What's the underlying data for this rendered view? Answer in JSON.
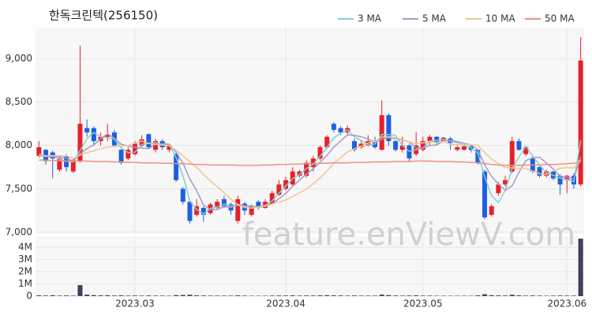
{
  "chart_data": {
    "type": "candlestick",
    "title": "한독크린텍(256150)",
    "watermark": "feature.enViewV.com",
    "up_color": "#e8202a",
    "down_color": "#1f5fe0",
    "grid": true,
    "legend": "top-right",
    "categories": [
      null,
      null,
      null,
      null,
      null,
      null,
      null,
      null,
      null,
      null,
      null,
      null,
      null,
      null,
      "2023.03",
      null,
      null,
      null,
      null,
      null,
      null,
      null,
      null,
      null,
      null,
      null,
      null,
      null,
      null,
      null,
      null,
      null,
      null,
      null,
      null,
      null,
      "2023.04",
      null,
      null,
      null,
      null,
      null,
      null,
      null,
      null,
      null,
      null,
      null,
      null,
      null,
      null,
      null,
      null,
      null,
      null,
      null,
      "2023.05",
      null,
      null,
      null,
      null,
      null,
      null,
      null,
      null,
      null,
      null,
      null,
      null,
      null,
      null,
      null,
      null,
      null,
      null,
      null,
      null,
      "2023.06",
      null,
      null
    ],
    "open": [
      7880,
      7950,
      7920,
      7720,
      7870,
      7700,
      7820,
      8200,
      8200,
      8050,
      8100,
      8150,
      7950,
      7850,
      7900,
      8000,
      8130,
      7950,
      8050,
      7950,
      7900,
      7500,
      7350,
      7200,
      7280,
      7220,
      7280,
      7380,
      7320,
      7130,
      7330,
      7200,
      7350,
      7280,
      7330,
      7430,
      7500,
      7550,
      7650,
      7650,
      7750,
      7850,
      7980,
      8250,
      8200,
      8150,
      8050,
      7980,
      8000,
      8050,
      7950,
      8350,
      8050,
      7950,
      8000,
      7900,
      7950,
      8050,
      8100,
      8050,
      8080,
      7950,
      7950,
      7990,
      7950,
      7700,
      7200,
      7450,
      7550,
      7700,
      8050,
      7900,
      7850,
      7750,
      7650,
      7700,
      7650,
      7600,
      7650,
      7550
    ],
    "high": [
      8050,
      7960,
      7940,
      7880,
      7900,
      7850,
      9150,
      8300,
      8220,
      8150,
      8250,
      8180,
      7960,
      7980,
      8050,
      8120,
      8140,
      8080,
      8070,
      8020,
      7920,
      7520,
      7380,
      7380,
      7300,
      7340,
      7380,
      7420,
      7340,
      7420,
      7350,
      7320,
      7370,
      7380,
      7480,
      7600,
      7640,
      7750,
      7720,
      7830,
      7880,
      8000,
      8120,
      8270,
      8220,
      8230,
      8080,
      8060,
      8120,
      8100,
      8520,
      8370,
      8060,
      8100,
      8020,
      8150,
      8100,
      8120,
      8110,
      8100,
      8100,
      8000,
      8010,
      8000,
      7960,
      7720,
      7320,
      7580,
      7650,
      8100,
      8080,
      8000,
      7870,
      7760,
      7720,
      7720,
      7670,
      7660,
      7680,
      9250
    ],
    "low": [
      7860,
      7780,
      7620,
      7700,
      7700,
      7680,
      7800,
      8100,
      8000,
      8000,
      8050,
      7980,
      7780,
      7830,
      7880,
      7980,
      7960,
      7920,
      7950,
      7920,
      7580,
      7320,
      7100,
      7180,
      7120,
      7200,
      7260,
      7280,
      7200,
      7100,
      7200,
      7180,
      7260,
      7270,
      7320,
      7420,
      7480,
      7530,
      7630,
      7630,
      7700,
      7830,
      7960,
      8150,
      8120,
      8130,
      7930,
      7960,
      7990,
      7960,
      7940,
      8000,
      7930,
      7920,
      7820,
      7880,
      7930,
      8000,
      8000,
      8040,
      7950,
      7930,
      7940,
      7920,
      7780,
      7150,
      7180,
      7420,
      7530,
      7680,
      7940,
      7880,
      7680,
      7630,
      7630,
      7600,
      7430,
      7450,
      7500,
      7530
    ],
    "close": [
      7980,
      7820,
      7850,
      7850,
      7750,
      7830,
      8250,
      8150,
      8050,
      8100,
      8120,
      8000,
      7800,
      7950,
      8020,
      8070,
      7980,
      8050,
      7980,
      8000,
      7600,
      7350,
      7130,
      7300,
      7200,
      7320,
      7350,
      7300,
      7250,
      7380,
      7250,
      7300,
      7280,
      7350,
      7450,
      7550,
      7600,
      7700,
      7700,
      7800,
      7850,
      7980,
      8100,
      8180,
      8150,
      8200,
      7950,
      8020,
      8050,
      7980,
      8350,
      8050,
      7950,
      8000,
      7850,
      8000,
      8050,
      8100,
      8030,
      8090,
      8030,
      7980,
      7990,
      7950,
      7800,
      7170,
      7300,
      7550,
      7600,
      8050,
      7950,
      7980,
      7700,
      7650,
      7700,
      7620,
      7550,
      7650,
      7550,
      8980
    ],
    "series": [
      {
        "name": "3 MA",
        "color": "#7fd0d4",
        "values": [
          7900,
          7880,
          7883,
          7840,
          7817,
          7810,
          7943,
          8077,
          8150,
          8100,
          8090,
          8073,
          7973,
          7917,
          7923,
          8013,
          8023,
          8033,
          8003,
          8010,
          7860,
          7650,
          7360,
          7260,
          7210,
          7273,
          7290,
          7323,
          7300,
          7310,
          7293,
          7310,
          7277,
          7310,
          7360,
          7450,
          7533,
          7617,
          7667,
          7733,
          7783,
          7877,
          7977,
          8087,
          8143,
          8177,
          8100,
          8057,
          8007,
          8017,
          8127,
          8127,
          8117,
          8000,
          7933,
          7950,
          7967,
          8050,
          8060,
          8073,
          8050,
          8033,
          8000,
          7973,
          7913,
          7640,
          7423,
          7340,
          7483,
          7733,
          7867,
          7993,
          7877,
          7777,
          7683,
          7657,
          7623,
          7607,
          7583,
          8060
        ]
      },
      {
        "name": "5 MA",
        "color": "#a996c8",
        "values": [
          7880,
          7870,
          7870,
          7870,
          7850,
          7820,
          7906,
          7966,
          8006,
          8076,
          8134,
          8084,
          8014,
          7994,
          7978,
          7968,
          7964,
          8014,
          8020,
          8016,
          7922,
          7796,
          7612,
          7476,
          7316,
          7260,
          7260,
          7294,
          7284,
          7320,
          7306,
          7296,
          7292,
          7312,
          7326,
          7386,
          7446,
          7530,
          7600,
          7670,
          7730,
          7806,
          7886,
          7982,
          8052,
          8122,
          8116,
          8100,
          8074,
          8040,
          8070,
          8090,
          8076,
          8066,
          8040,
          7970,
          7970,
          8000,
          8006,
          8054,
          8060,
          8046,
          8024,
          8008,
          7950,
          7778,
          7642,
          7554,
          7484,
          7534,
          7690,
          7826,
          7856,
          7866,
          7796,
          7730,
          7644,
          7634,
          7614,
          7870
        ]
      },
      {
        "name": "10 MA",
        "color": "#f2c58a",
        "values": [
          7880,
          7880,
          7880,
          7880,
          7880,
          7850,
          7888,
          7918,
          7938,
          7963,
          7977,
          7995,
          7990,
          8000,
          8027,
          8051,
          8024,
          8014,
          8007,
          7997,
          7945,
          7880,
          7813,
          7748,
          7666,
          7591,
          7528,
          7453,
          7380,
          7318,
          7283,
          7278,
          7293,
          7298,
          7323,
          7346,
          7371,
          7411,
          7456,
          7498,
          7558,
          7626,
          7708,
          7791,
          7861,
          7926,
          7961,
          7993,
          8028,
          8046,
          8096,
          8103,
          8088,
          8070,
          8040,
          8020,
          8030,
          8038,
          8036,
          8047,
          8015,
          8008,
          8012,
          8007,
          8002,
          7919,
          7844,
          7789,
          7746,
          7742,
          7734,
          7734,
          7705,
          7675,
          7665,
          7710,
          7735,
          7745,
          7740,
          7833
        ]
      },
      {
        "name": "50 MA",
        "color": "#f0907c",
        "values": [
          7830,
          7830,
          7825,
          7825,
          7820,
          7820,
          7820,
          7820,
          7815,
          7815,
          7815,
          7810,
          7810,
          7805,
          7805,
          7800,
          7800,
          7800,
          7795,
          7795,
          7790,
          7790,
          7785,
          7780,
          7780,
          7775,
          7775,
          7775,
          7775,
          7770,
          7770,
          7770,
          7770,
          7775,
          7775,
          7780,
          7780,
          7785,
          7785,
          7790,
          7790,
          7795,
          7795,
          7800,
          7800,
          7800,
          7805,
          7805,
          7805,
          7810,
          7810,
          7810,
          7815,
          7815,
          7815,
          7820,
          7820,
          7820,
          7815,
          7815,
          7815,
          7810,
          7810,
          7805,
          7800,
          7790,
          7780,
          7775,
          7770,
          7770,
          7770,
          7775,
          7775,
          7775,
          7780,
          7780,
          7785,
          7790,
          7795,
          7810
        ]
      }
    ],
    "ylim": [
      6980,
      9360
    ],
    "yticks": [
      {
        "value": 7000,
        "label": "7,000"
      },
      {
        "value": 7500,
        "label": "7,500"
      },
      {
        "value": 8000,
        "label": "8,000"
      },
      {
        "value": 8500,
        "label": "8,500"
      },
      {
        "value": 9000,
        "label": "9,000"
      }
    ],
    "volume": {
      "color": "#3d3f5c",
      "values": [
        60000,
        50000,
        70000,
        40000,
        50000,
        40000,
        900000,
        120000,
        80000,
        60000,
        70000,
        50000,
        60000,
        40000,
        50000,
        40000,
        50000,
        40000,
        40000,
        30000,
        80000,
        90000,
        110000,
        60000,
        50000,
        40000,
        40000,
        40000,
        40000,
        60000,
        40000,
        30000,
        30000,
        30000,
        40000,
        50000,
        50000,
        60000,
        40000,
        50000,
        50000,
        60000,
        70000,
        60000,
        50000,
        40000,
        50000,
        40000,
        40000,
        40000,
        120000,
        80000,
        50000,
        40000,
        50000,
        60000,
        40000,
        40000,
        30000,
        30000,
        30000,
        30000,
        30000,
        30000,
        60000,
        150000,
        70000,
        60000,
        50000,
        110000,
        60000,
        40000,
        50000,
        40000,
        30000,
        40000,
        50000,
        40000,
        40000,
        4700000
      ],
      "ylim": [
        0,
        4900000
      ],
      "yticks": [
        0,
        {
          "value": 1000000,
          "label": "1M"
        },
        {
          "value": 2000000,
          "label": "2M"
        },
        {
          "value": 3000000,
          "label": "3M"
        },
        {
          "value": 4000000,
          "label": "4M"
        }
      ]
    }
  }
}
